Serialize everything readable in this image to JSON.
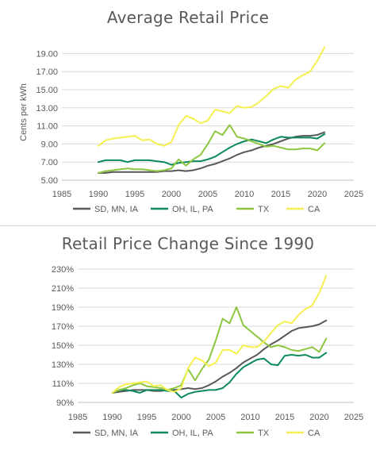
{
  "chart_data": [
    {
      "type": "line",
      "title": "Average Retail Price",
      "xlabel": "",
      "ylabel": "Cents per kWh",
      "xlim": [
        1985,
        2025
      ],
      "ylim": [
        5.0,
        20.0
      ],
      "xticks": [
        "1985",
        "1990",
        "1995",
        "2000",
        "2005",
        "2010",
        "2015",
        "2020",
        "2025"
      ],
      "yticks": [
        "5.00",
        "7.00",
        "9.00",
        "11.00",
        "13.00",
        "15.00",
        "17.00",
        "19.00"
      ],
      "grid": true,
      "legend": "bottom",
      "x": [
        1990,
        1991,
        1992,
        1993,
        1994,
        1995,
        1996,
        1997,
        1998,
        1999,
        2000,
        2001,
        2002,
        2003,
        2004,
        2005,
        2006,
        2007,
        2008,
        2009,
        2010,
        2011,
        2012,
        2013,
        2014,
        2015,
        2016,
        2017,
        2018,
        2019,
        2020,
        2021
      ],
      "series": [
        {
          "name": "SD, MN, IA",
          "color": "#595959",
          "values": [
            5.8,
            5.8,
            5.9,
            5.9,
            5.9,
            5.9,
            5.9,
            5.9,
            5.9,
            6.0,
            6.0,
            6.1,
            6.0,
            6.1,
            6.3,
            6.6,
            6.8,
            7.1,
            7.4,
            7.8,
            8.1,
            8.3,
            8.6,
            8.8,
            9.0,
            9.3,
            9.6,
            9.8,
            9.9,
            9.9,
            10.0,
            10.3
          ]
        },
        {
          "name": "OH, IL, PA",
          "color": "#0b8a5a",
          "values": [
            7.0,
            7.2,
            7.2,
            7.2,
            7.0,
            7.2,
            7.2,
            7.2,
            7.1,
            7.0,
            6.7,
            6.9,
            7.0,
            7.1,
            7.1,
            7.3,
            7.6,
            8.1,
            8.6,
            9.0,
            9.3,
            9.5,
            9.3,
            9.1,
            9.5,
            9.8,
            9.7,
            9.7,
            9.7,
            9.7,
            9.6,
            10.1
          ]
        },
        {
          "name": "TX",
          "color": "#8dc63f",
          "values": [
            5.8,
            6.0,
            6.1,
            6.2,
            6.3,
            6.2,
            6.2,
            6.1,
            6.0,
            6.1,
            6.3,
            7.3,
            6.6,
            7.3,
            7.8,
            9.0,
            10.4,
            10.0,
            11.1,
            9.8,
            9.6,
            9.3,
            9.0,
            8.7,
            8.8,
            8.6,
            8.4,
            8.4,
            8.5,
            8.5,
            8.3,
            9.1
          ]
        },
        {
          "name": "CA",
          "color": "#f3f04f",
          "values": [
            8.8,
            9.4,
            9.6,
            9.7,
            9.8,
            9.9,
            9.4,
            9.5,
            9.0,
            8.8,
            9.2,
            11.1,
            12.1,
            11.8,
            11.3,
            11.6,
            12.8,
            12.6,
            12.4,
            13.2,
            13.0,
            13.1,
            13.6,
            14.3,
            15.1,
            15.4,
            15.2,
            16.1,
            16.6,
            17.0,
            18.2,
            19.7
          ]
        }
      ]
    },
    {
      "type": "line",
      "title": "Retail Price Change Since 1990",
      "xlabel": "",
      "ylabel": "",
      "xlim": [
        1985,
        2025
      ],
      "ylim": [
        90,
        230
      ],
      "xticks": [
        "1985",
        "1990",
        "1995",
        "2000",
        "2005",
        "2010",
        "2015",
        "2020",
        "2025"
      ],
      "yticks": [
        "90%",
        "110%",
        "130%",
        "150%",
        "170%",
        "190%",
        "210%",
        "230%"
      ],
      "grid": true,
      "legend": "bottom",
      "x": [
        1990,
        1991,
        1992,
        1993,
        1994,
        1995,
        1996,
        1997,
        1998,
        1999,
        2000,
        2001,
        2002,
        2003,
        2004,
        2005,
        2006,
        2007,
        2008,
        2009,
        2010,
        2011,
        2012,
        2013,
        2014,
        2015,
        2016,
        2017,
        2018,
        2019,
        2020,
        2021
      ],
      "series": [
        {
          "name": "SD, MN, IA",
          "color": "#595959",
          "values": [
            100,
            101,
            102,
            103,
            103,
            103,
            102,
            102,
            103,
            103,
            104,
            105,
            104,
            105,
            108,
            112,
            117,
            121,
            126,
            132,
            136,
            140,
            146,
            151,
            155,
            160,
            165,
            168,
            169,
            170,
            172,
            176
          ]
        },
        {
          "name": "OH, IL, PA",
          "color": "#0b8a5a",
          "values": [
            100,
            103,
            103,
            102,
            100,
            103,
            103,
            103,
            102,
            102,
            95,
            99,
            101,
            102,
            103,
            103,
            105,
            111,
            120,
            127,
            131,
            135,
            136,
            130,
            129,
            139,
            140,
            139,
            140,
            137,
            137,
            142
          ]
        },
        {
          "name": "TX",
          "color": "#8dc63f",
          "values": [
            100,
            103,
            105,
            108,
            110,
            107,
            106,
            105,
            103,
            105,
            108,
            125,
            113,
            125,
            135,
            155,
            178,
            173,
            190,
            171,
            165,
            159,
            153,
            148,
            150,
            148,
            145,
            144,
            146,
            148,
            143,
            157
          ]
        },
        {
          "name": "CA",
          "color": "#f3f04f",
          "values": [
            100,
            106,
            109,
            110,
            111,
            112,
            107,
            108,
            103,
            101,
            105,
            126,
            137,
            134,
            128,
            132,
            145,
            145,
            141,
            150,
            148,
            148,
            154,
            163,
            171,
            175,
            173,
            182,
            188,
            192,
            205,
            223
          ]
        }
      ]
    }
  ]
}
